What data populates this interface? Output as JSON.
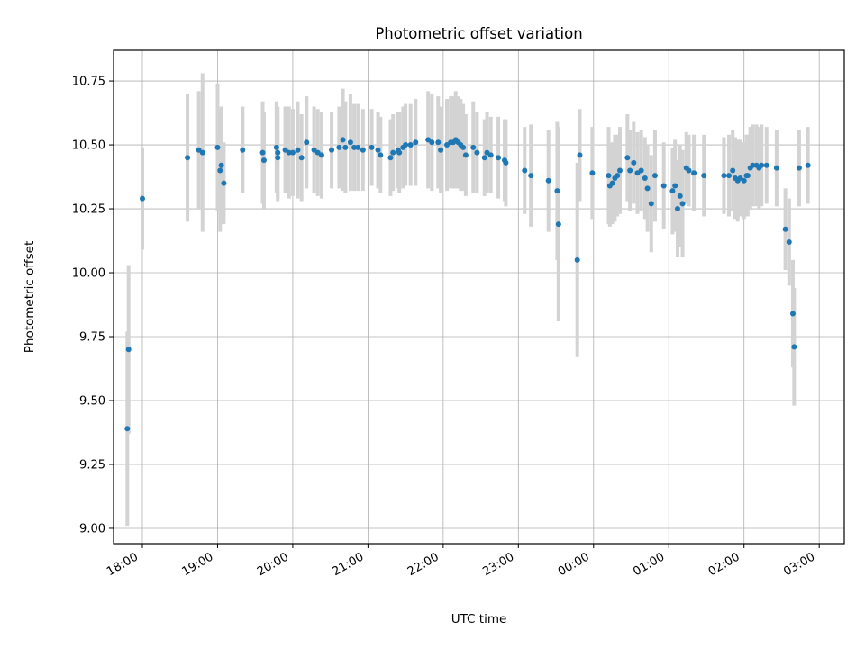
{
  "chart_data": {
    "type": "scatter",
    "title": "Photometric offset variation",
    "xlabel": "UTC time",
    "ylabel": "Photometric offset",
    "xlim": [
      "17:37",
      "03:20"
    ],
    "ylim": [
      8.94,
      10.87
    ],
    "x_ticks": [
      "18:00",
      "19:00",
      "20:00",
      "21:00",
      "22:00",
      "23:00",
      "00:00",
      "01:00",
      "02:00",
      "03:00"
    ],
    "y_ticks": [
      "9.00",
      "9.25",
      "9.50",
      "9.75",
      "10.00",
      "10.25",
      "10.50",
      "10.75"
    ],
    "grid": true,
    "point_color": "#1f77b4",
    "errorbar_color": "#d3d3d3",
    "series": [
      {
        "x": [
          "17:48",
          "17:49",
          "18:00",
          "18:36",
          "18:45",
          "18:48",
          "19:00",
          "19:02",
          "19:03",
          "19:05",
          "19:20",
          "19:36",
          "19:37",
          "19:47",
          "19:48",
          "19:48",
          "19:54",
          "19:57",
          "20:00",
          "20:04",
          "20:07",
          "20:11",
          "20:17",
          "20:20",
          "20:23",
          "20:31",
          "20:37",
          "20:40",
          "20:42",
          "20:46",
          "20:49",
          "20:52",
          "20:56",
          "21:03",
          "21:08",
          "21:10",
          "21:18",
          "21:20",
          "21:24",
          "21:25",
          "21:28",
          "21:30",
          "21:34",
          "21:38",
          "21:48",
          "21:51",
          "21:56",
          "21:58",
          "22:03",
          "22:06",
          "22:08",
          "22:10",
          "22:12",
          "22:14",
          "22:16",
          "22:18",
          "22:24",
          "22:27",
          "22:33",
          "22:35",
          "22:38",
          "22:44",
          "22:49",
          "22:50",
          "23:05",
          "23:10",
          "23:24",
          "23:31",
          "23:32",
          "23:47",
          "23:49",
          "23:59",
          "24:12",
          "24:13",
          "24:15",
          "24:17",
          "24:19",
          "24:21",
          "24:27",
          "24:29",
          "24:32",
          "24:35",
          "24:38",
          "24:41",
          "24:43",
          "24:46",
          "24:49",
          "24:56",
          "25:03",
          "25:05",
          "25:07",
          "25:09",
          "25:11",
          "25:14",
          "25:16",
          "25:20",
          "25:28",
          "25:44",
          "25:48",
          "25:51",
          "25:53",
          "25:55",
          "25:57",
          "26:00",
          "26:02",
          "26:03",
          "26:05",
          "26:07",
          "26:10",
          "26:12",
          "26:14",
          "26:18",
          "26:26",
          "26:33",
          "26:36",
          "26:39",
          "26:40",
          "26:44",
          "26:51"
        ],
        "y": [
          9.39,
          9.7,
          10.29,
          10.45,
          10.48,
          10.47,
          10.49,
          10.4,
          10.42,
          10.35,
          10.48,
          10.47,
          10.44,
          10.49,
          10.47,
          10.45,
          10.48,
          10.47,
          10.47,
          10.48,
          10.45,
          10.51,
          10.48,
          10.47,
          10.46,
          10.48,
          10.49,
          10.52,
          10.49,
          10.51,
          10.49,
          10.49,
          10.48,
          10.49,
          10.48,
          10.46,
          10.45,
          10.47,
          10.48,
          10.47,
          10.49,
          10.5,
          10.5,
          10.51,
          10.52,
          10.51,
          10.51,
          10.48,
          10.5,
          10.51,
          10.51,
          10.52,
          10.51,
          10.5,
          10.49,
          10.46,
          10.49,
          10.47,
          10.45,
          10.47,
          10.46,
          10.45,
          10.44,
          10.43,
          10.4,
          10.38,
          10.36,
          10.32,
          10.19,
          10.05,
          10.46,
          10.39,
          10.38,
          10.34,
          10.35,
          10.37,
          10.38,
          10.4,
          10.45,
          10.4,
          10.43,
          10.39,
          10.4,
          10.37,
          10.33,
          10.27,
          10.38,
          10.34,
          10.32,
          10.34,
          10.25,
          10.3,
          10.27,
          10.41,
          10.4,
          10.39,
          10.38,
          10.38,
          10.38,
          10.4,
          10.37,
          10.36,
          10.37,
          10.36,
          10.38,
          10.38,
          10.41,
          10.42,
          10.42,
          10.41,
          10.42,
          10.42,
          10.41,
          10.17,
          10.12,
          9.84,
          9.71,
          10.41,
          10.42
        ],
        "yerr": [
          0.38,
          0.33,
          0.2,
          0.25,
          0.23,
          0.31,
          0.25,
          0.24,
          0.23,
          0.16,
          0.17,
          0.2,
          0.19,
          0.18,
          0.18,
          0.17,
          0.17,
          0.18,
          0.17,
          0.19,
          0.17,
          0.18,
          0.17,
          0.17,
          0.17,
          0.15,
          0.16,
          0.2,
          0.18,
          0.19,
          0.17,
          0.17,
          0.16,
          0.15,
          0.15,
          0.15,
          0.15,
          0.15,
          0.15,
          0.16,
          0.16,
          0.16,
          0.16,
          0.17,
          0.19,
          0.19,
          0.18,
          0.17,
          0.18,
          0.18,
          0.18,
          0.19,
          0.18,
          0.18,
          0.17,
          0.16,
          0.18,
          0.16,
          0.15,
          0.16,
          0.15,
          0.16,
          0.16,
          0.17,
          0.17,
          0.2,
          0.2,
          0.27,
          0.38,
          0.38,
          0.18,
          0.18,
          0.19,
          0.16,
          0.16,
          0.17,
          0.16,
          0.17,
          0.17,
          0.16,
          0.16,
          0.16,
          0.16,
          0.16,
          0.17,
          0.19,
          0.18,
          0.17,
          0.17,
          0.18,
          0.19,
          0.2,
          0.21,
          0.14,
          0.14,
          0.15,
          0.16,
          0.15,
          0.16,
          0.16,
          0.16,
          0.16,
          0.15,
          0.15,
          0.16,
          0.16,
          0.16,
          0.16,
          0.16,
          0.16,
          0.16,
          0.15,
          0.15,
          0.16,
          0.17,
          0.21,
          0.23,
          0.15,
          0.15
        ]
      }
    ]
  }
}
